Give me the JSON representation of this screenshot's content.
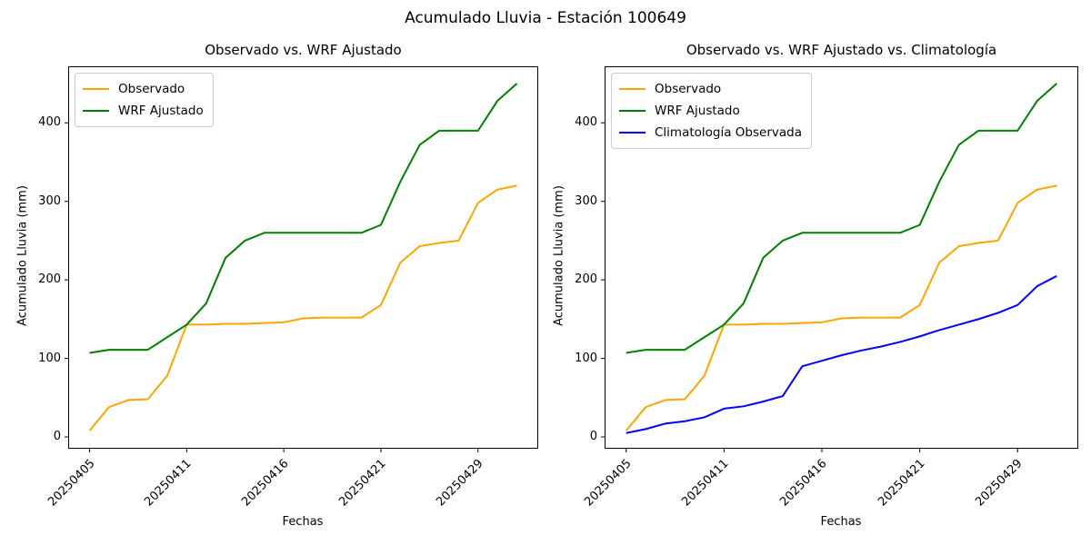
{
  "figure": {
    "title": "Acumulado Lluvia - Estación 100649",
    "background": "#ffffff",
    "axis_color": "#000000"
  },
  "chart_data": [
    {
      "type": "line",
      "title": "Observado vs. WRF Ajustado",
      "xlabel": "Fechas",
      "ylabel": "Acumulado Lluvia (mm)",
      "grid": false,
      "legend_position": "upper left",
      "xlim": [
        -1.1,
        23.1
      ],
      "ylim": [
        -15,
        472
      ],
      "y_ticks": [
        0,
        100,
        200,
        300,
        400
      ],
      "x_tick_positions": [
        0,
        5,
        10,
        15,
        20
      ],
      "x_tick_labels": [
        "20250405",
        "20250411",
        "20250416",
        "20250421",
        "20250429"
      ],
      "x": [
        0,
        1,
        2,
        3,
        4,
        5,
        6,
        7,
        8,
        9,
        10,
        11,
        12,
        13,
        14,
        15,
        16,
        17,
        18,
        19,
        20,
        21,
        22
      ],
      "series": [
        {
          "name": "Observado",
          "color": "#FFA500",
          "values": [
            8,
            38,
            47,
            48,
            78,
            143,
            143,
            144,
            144,
            145,
            146,
            151,
            152,
            152,
            152,
            168,
            222,
            243,
            247,
            250,
            298,
            315,
            320
          ]
        },
        {
          "name": "WRF Ajustado",
          "color": "#008000",
          "values": [
            107,
            111,
            111,
            111,
            127,
            143,
            170,
            228,
            250,
            260,
            260,
            260,
            260,
            260,
            260,
            270,
            325,
            372,
            390,
            390,
            390,
            428,
            450
          ]
        }
      ]
    },
    {
      "type": "line",
      "title": "Observado vs. WRF Ajustado vs. Climatología",
      "xlabel": "Fechas",
      "ylabel": "Acumulado Lluvia (mm)",
      "grid": false,
      "legend_position": "upper left",
      "xlim": [
        -1.1,
        23.1
      ],
      "ylim": [
        -15,
        472
      ],
      "y_ticks": [
        0,
        100,
        200,
        300,
        400
      ],
      "x_tick_positions": [
        0,
        5,
        10,
        15,
        20
      ],
      "x_tick_labels": [
        "20250405",
        "20250411",
        "20250416",
        "20250421",
        "20250429"
      ],
      "x": [
        0,
        1,
        2,
        3,
        4,
        5,
        6,
        7,
        8,
        9,
        10,
        11,
        12,
        13,
        14,
        15,
        16,
        17,
        18,
        19,
        20,
        21,
        22
      ],
      "series": [
        {
          "name": "Observado",
          "color": "#FFA500",
          "values": [
            8,
            38,
            47,
            48,
            78,
            143,
            143,
            144,
            144,
            145,
            146,
            151,
            152,
            152,
            152,
            168,
            222,
            243,
            247,
            250,
            298,
            315,
            320
          ]
        },
        {
          "name": "WRF Ajustado",
          "color": "#008000",
          "values": [
            107,
            111,
            111,
            111,
            127,
            143,
            170,
            228,
            250,
            260,
            260,
            260,
            260,
            260,
            260,
            270,
            325,
            372,
            390,
            390,
            390,
            428,
            450
          ]
        },
        {
          "name": "Climatología Observada",
          "color": "#0000FF",
          "values": [
            5,
            10,
            17,
            20,
            25,
            36,
            39,
            45,
            52,
            90,
            97,
            104,
            110,
            115,
            121,
            128,
            136,
            143,
            150,
            158,
            168,
            192,
            205
          ]
        }
      ]
    }
  ],
  "layout_labels": {
    "left_ylabel": "Acumulado Lluvia (mm)",
    "right_ylabel": "Acumulado Lluvia (mm)",
    "left_xlabel": "Fechas",
    "right_xlabel": "Fechas"
  }
}
